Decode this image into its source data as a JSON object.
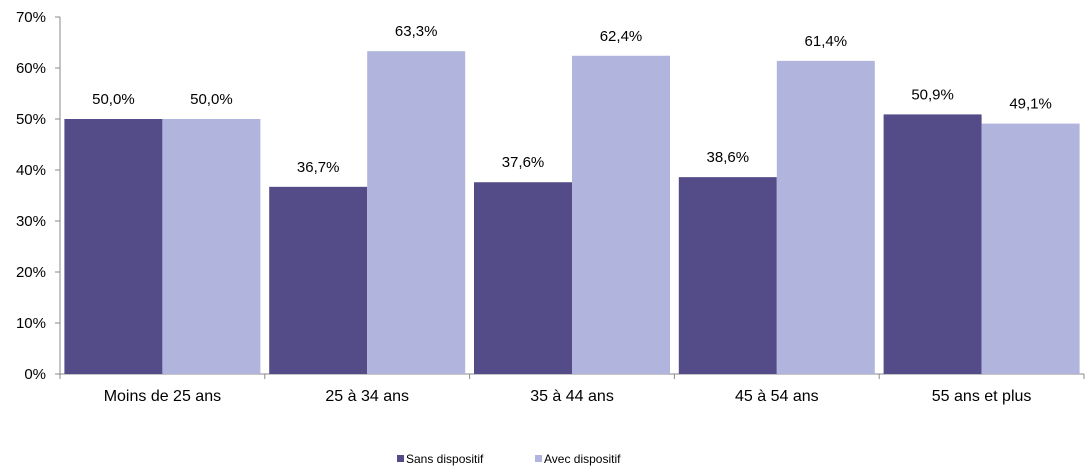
{
  "chart_data": {
    "type": "bar",
    "title": "",
    "xlabel": "",
    "ylabel": "",
    "categories": [
      "Moins de 25 ans",
      "25 à 34 ans",
      "35 à 44 ans",
      "45 à 54 ans",
      "55 ans et plus"
    ],
    "series": [
      {
        "name": "Sans dispositif",
        "color": "#544c88",
        "values": [
          50.0,
          36.7,
          37.6,
          38.6,
          50.9
        ],
        "labels": [
          "50,0%",
          "36,7%",
          "37,6%",
          "38,6%",
          "50,9%"
        ]
      },
      {
        "name": "Avec dispositif",
        "color": "#b1b5dd",
        "values": [
          50.0,
          63.3,
          62.4,
          61.4,
          49.1
        ],
        "labels": [
          "50,0%",
          "63,3%",
          "62,4%",
          "61,4%",
          "49,1%"
        ]
      }
    ],
    "ylim": [
      0,
      70
    ],
    "yticks": [
      0,
      10,
      20,
      30,
      40,
      50,
      60,
      70
    ],
    "ytick_labels": [
      "0%",
      "10%",
      "20%",
      "30%",
      "40%",
      "50%",
      "60%",
      "70%"
    ],
    "grid": false,
    "legend_position": "bottom"
  }
}
